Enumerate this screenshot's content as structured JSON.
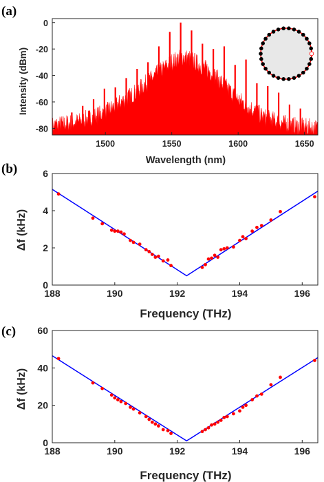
{
  "colors": {
    "spectrum": "#ff0000",
    "points": "#ff0000",
    "fit": "#0000ff",
    "axis": "#262626",
    "ring_fill": "#e8e8e8",
    "ring_dots": "#000000",
    "ring_line": "#ff0000"
  },
  "chart_data": [
    {
      "panel": "(a)",
      "type": "area",
      "title": "",
      "xlabel": "Wavelength (nm)",
      "ylabel": "Intensity (dBm)",
      "xlim": [
        1460,
        1660
      ],
      "ylim": [
        -85,
        3
      ],
      "xticks": [
        "1500",
        "1550",
        "1600",
        "1650"
      ],
      "yticks": [
        "0",
        "-20",
        "-40",
        "-60",
        "-80"
      ],
      "envelope": {
        "x": [
          1460,
          1480,
          1500,
          1520,
          1540,
          1550,
          1558,
          1565,
          1580,
          1600,
          1620,
          1640,
          1660
        ],
        "y": [
          -78,
          -75,
          -68,
          -55,
          -38,
          -30,
          -26,
          -28,
          -38,
          -58,
          -72,
          -78,
          -80
        ]
      },
      "comb_lines": {
        "x": [
          1474.7,
          1482.9,
          1491.1,
          1499.3,
          1507.5,
          1515.7,
          1523.9,
          1532.1,
          1540.3,
          1548.5,
          1556.7,
          1564.9,
          1573.1,
          1581.3,
          1589.5,
          1597.7,
          1605.9,
          1614.1,
          1622.3,
          1630.5,
          1638.7,
          1646.9
        ],
        "y": [
          -68,
          -63,
          -58,
          -50,
          -49,
          -42,
          -35,
          -30,
          -18,
          -7,
          0,
          -6,
          -16,
          -20,
          -18,
          -32,
          -28,
          -41,
          -48,
          -53,
          -62,
          -65
        ]
      },
      "inset": "microring resonator"
    },
    {
      "panel": "(b)",
      "type": "scatter",
      "title": "",
      "xlabel": "Frequency (THz)",
      "ylabel": "Δf (kHz)",
      "xlim": [
        188,
        196.5
      ],
      "ylim": [
        0,
        6
      ],
      "xticks": [
        "188",
        "190",
        "192",
        "194",
        "196"
      ],
      "yticks": [
        "0",
        "2",
        "4",
        "6"
      ],
      "points": {
        "x": [
          188.2,
          189.3,
          189.6,
          189.9,
          190.0,
          190.1,
          190.2,
          190.3,
          190.5,
          190.6,
          190.8,
          191.0,
          191.1,
          191.2,
          191.3,
          191.4,
          191.55,
          191.7,
          191.8,
          192.8,
          192.9,
          193.0,
          193.1,
          193.2,
          193.3,
          193.4,
          193.5,
          193.6,
          193.8,
          194.0,
          194.1,
          194.2,
          194.4,
          194.55,
          194.7,
          195.0,
          195.3,
          196.4
        ],
        "y": [
          4.9,
          3.6,
          3.3,
          2.95,
          2.9,
          2.9,
          2.85,
          2.75,
          2.4,
          2.3,
          2.2,
          1.9,
          1.8,
          1.65,
          1.5,
          1.55,
          1.3,
          1.35,
          1.05,
          0.95,
          1.1,
          1.4,
          1.45,
          1.6,
          1.5,
          1.9,
          1.95,
          2.0,
          2.05,
          2.4,
          2.6,
          2.5,
          2.9,
          3.1,
          3.2,
          3.5,
          3.95,
          4.75
        ]
      },
      "fit": {
        "x": [
          188,
          192.3,
          196.5
        ],
        "y": [
          5.15,
          0.5,
          5.05
        ]
      }
    },
    {
      "panel": "(c)",
      "type": "scatter",
      "title": "",
      "xlabel": "Frequency (THz)",
      "ylabel": "Δf (kHz)",
      "xlim": [
        188,
        196.5
      ],
      "ylim": [
        0,
        60
      ],
      "xticks": [
        "188",
        "190",
        "192",
        "194",
        "196"
      ],
      "yticks": [
        "0",
        "20",
        "40",
        "60"
      ],
      "points": {
        "x": [
          188.2,
          189.3,
          189.6,
          189.9,
          190.0,
          190.1,
          190.2,
          190.35,
          190.5,
          190.6,
          190.8,
          191.0,
          191.1,
          191.2,
          191.3,
          191.4,
          191.55,
          191.7,
          191.8,
          192.8,
          192.9,
          193.0,
          193.1,
          193.2,
          193.3,
          193.4,
          193.5,
          193.6,
          193.8,
          194.0,
          194.1,
          194.2,
          194.4,
          194.55,
          194.7,
          195.0,
          195.3,
          196.4
        ],
        "y": [
          45,
          32,
          29,
          25.5,
          24,
          23,
          22,
          21,
          19,
          18,
          16,
          14,
          12.5,
          11,
          10,
          9,
          7,
          6.5,
          5,
          6,
          7,
          8,
          9.5,
          10,
          11,
          12,
          13.5,
          14,
          15.5,
          17,
          19,
          20,
          23,
          25,
          26,
          31,
          35,
          44
        ]
      },
      "fit": {
        "x": [
          188,
          192.3,
          196.5
        ],
        "y": [
          46.5,
          1,
          45.5
        ]
      }
    }
  ],
  "panel_labels": [
    "(a)",
    "(b)",
    "(c)"
  ]
}
